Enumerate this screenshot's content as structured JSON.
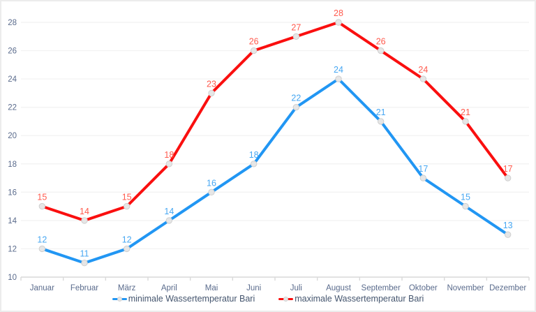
{
  "chart_data": {
    "type": "line",
    "title": "",
    "xlabel": "",
    "ylabel": "",
    "categories": [
      "Januar",
      "Februar",
      "März",
      "April",
      "Mai",
      "Juni",
      "Juli",
      "August",
      "September",
      "Oktober",
      "November",
      "Dezember"
    ],
    "series": [
      {
        "name": "minimale Wassertemperatur Bari",
        "values": [
          12,
          11,
          12,
          14,
          16,
          18,
          22,
          24,
          21,
          17,
          15,
          13
        ],
        "color": "#2196f3",
        "label_color": "#47a7f2"
      },
      {
        "name": "maximale Wassertemperatur Bari",
        "values": [
          15,
          14,
          15,
          18,
          23,
          26,
          27,
          28,
          26,
          24,
          21,
          17
        ],
        "color": "#fa0f0f",
        "label_color": "#ff5a4d"
      }
    ],
    "ylim": [
      10,
      28
    ],
    "ytick_step": 2,
    "yticks": [
      10,
      12,
      14,
      16,
      18,
      20,
      22,
      24,
      26,
      28
    ],
    "grid": true,
    "marker": "circle",
    "data_labels": "above",
    "legend_position": "bottom"
  },
  "style": {
    "gridline_color": "#f3f3f3",
    "axis_line_color": "#d9d9d9",
    "axis_text_color": "#5a6b8c",
    "marker_fill": "#e6e6e6",
    "marker_stroke": "#cfcfcf",
    "background": "#ffffff"
  }
}
